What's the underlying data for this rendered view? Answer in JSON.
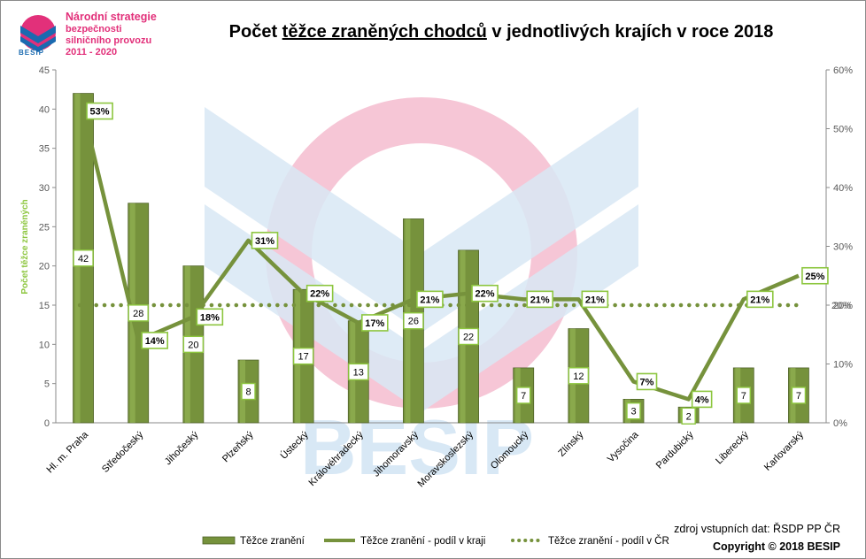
{
  "logo": {
    "line1": "Národní strategie",
    "line2": "bezpečnosti",
    "line3": "silničního provozu",
    "line4": "2011 - 2020",
    "word": "BESIP"
  },
  "title": {
    "before": "Počet ",
    "underlined": "těžce zraněných chodců",
    "after": " v jednotlivých krajích v roce 2018"
  },
  "watermark": "BESIP",
  "source": "zdroj vstupních dat: ŘSDP PP ČR",
  "copyright": "Copyright © 2018  BESIP",
  "colors": {
    "bar": "#76923c",
    "line": "#76923c",
    "label_border": "#8dc63f"
  },
  "chart_data": {
    "type": "bar",
    "title": "Počet těžce zraněných chodců v jednotlivých krajích v roce 2018",
    "ylabel": "Počet těžce zraněných",
    "ylim": [
      0,
      45
    ],
    "y2lim": [
      0,
      60
    ],
    "y_ticks": [
      "0",
      "5",
      "10",
      "15",
      "20",
      "25",
      "30",
      "35",
      "40",
      "45"
    ],
    "y2_ticks": [
      "0%",
      "10%",
      "20%",
      "30%",
      "40%",
      "50%",
      "60%"
    ],
    "categories": [
      "Hl. m. Praha",
      "Středočeský",
      "Jihočeský",
      "Plzeňský",
      "Ústecký",
      "Královéhradecký",
      "Jihomoravský",
      "Moravskoslezský",
      "Olomoucký",
      "Zlínský",
      "Vysočina",
      "Pardubický",
      "Liberecký",
      "Karlovarský"
    ],
    "series": [
      {
        "name": "Těžce zranění",
        "type": "bar",
        "axis": "left",
        "values": [
          42,
          28,
          20,
          8,
          17,
          13,
          26,
          22,
          7,
          12,
          3,
          2,
          7,
          7
        ]
      },
      {
        "name": "Těžce zranění - podíl v kraji",
        "type": "line",
        "axis": "right",
        "values": [
          53,
          14,
          18,
          31,
          22,
          17,
          21,
          22,
          21,
          21,
          7,
          4,
          21,
          25
        ],
        "labels": [
          "53%",
          "14%",
          "18%",
          "31%",
          "22%",
          "17%",
          "21%",
          "22%",
          "21%",
          "21%",
          "7%",
          "4%",
          "21%",
          "25%"
        ]
      },
      {
        "name": "Těžce zranění - podíl v ČR",
        "type": "line-dotted",
        "axis": "right",
        "value": 20,
        "label": "20%"
      }
    ],
    "grid": false,
    "legend": "bottom"
  }
}
